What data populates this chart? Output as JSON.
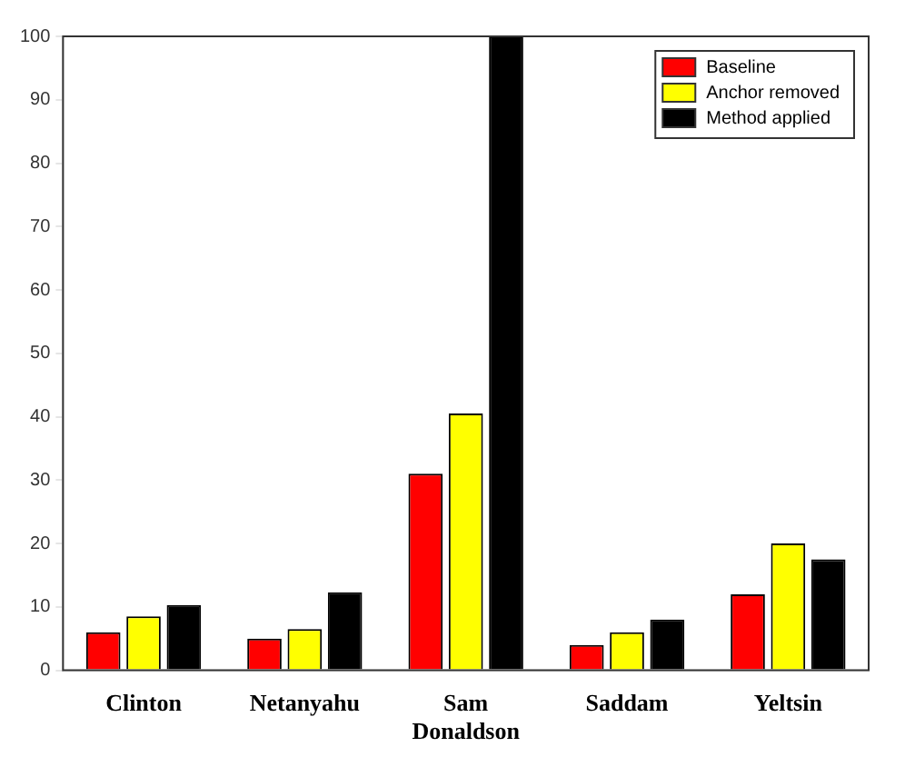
{
  "chart_data": {
    "type": "bar",
    "categories": [
      "Clinton",
      "Netanyahu",
      "Sam Donaldson",
      "Saddam",
      "Yeltsin"
    ],
    "series": [
      {
        "name": "Baseline",
        "color": "#ff0000",
        "values": [
          6,
          5,
          31,
          4,
          12
        ]
      },
      {
        "name": "Anchor removed",
        "color": "#ffff00",
        "values": [
          8.5,
          6.5,
          40.5,
          6,
          20
        ]
      },
      {
        "name": "Method applied",
        "color": "#000000",
        "values": [
          10.3,
          12.3,
          100,
          8,
          17.5
        ]
      }
    ],
    "ylim": [
      0,
      100
    ],
    "yticks": [
      0,
      10,
      20,
      30,
      40,
      50,
      60,
      70,
      80,
      90,
      100
    ],
    "grid": false,
    "legend": "top right"
  }
}
